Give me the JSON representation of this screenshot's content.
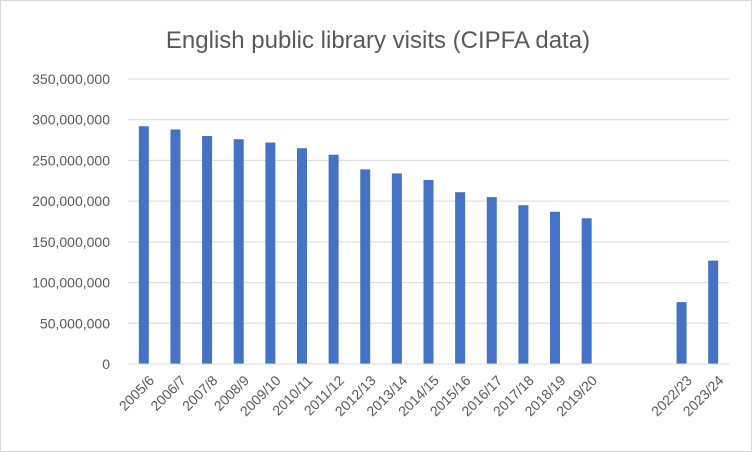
{
  "chart_data": {
    "type": "bar",
    "title": "English public library visits (CIPFA data)",
    "xlabel": "",
    "ylabel": "",
    "ylim": [
      0,
      350000000
    ],
    "yticks": [
      0,
      50000000,
      100000000,
      150000000,
      200000000,
      250000000,
      300000000,
      350000000
    ],
    "ytick_labels": [
      "0",
      "50,000,000",
      "100,000,000",
      "150,000,000",
      "200,000,000",
      "250,000,000",
      "300,000,000",
      "350,000,000"
    ],
    "categories": [
      "2005/6",
      "2006/7",
      "2007/8",
      "2008/9",
      "2009/10",
      "2010/11",
      "2011/12",
      "2012/13",
      "2013/14",
      "2014/15",
      "2015/16",
      "2016/17",
      "2017/18",
      "2018/19",
      "2019/20",
      "",
      "",
      "2022/23",
      "2023/24"
    ],
    "values": [
      292000000,
      288000000,
      280000000,
      276000000,
      272000000,
      265000000,
      257000000,
      239000000,
      234000000,
      226000000,
      211000000,
      205000000,
      195000000,
      187000000,
      179000000,
      null,
      null,
      76000000,
      127000000
    ],
    "bar_color": "#4472c4",
    "grid": true,
    "legend": "none"
  }
}
